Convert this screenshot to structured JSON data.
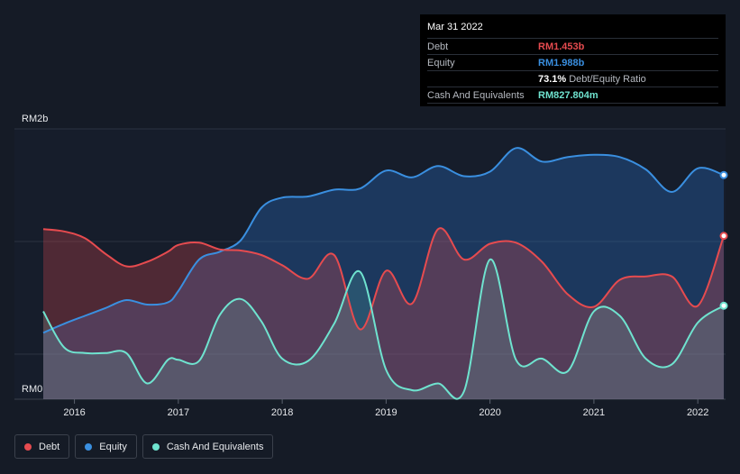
{
  "tooltip": {
    "date": "Mar 31 2022",
    "rows": [
      {
        "label": "Debt",
        "value": "RM1.453b",
        "color": "#e64b4f"
      },
      {
        "label": "Equity",
        "value": "RM1.988b",
        "color": "#3a8fe0"
      },
      {
        "label": "",
        "value": "73.1%",
        "note": "Debt/Equity Ratio",
        "color": "#ffffff"
      },
      {
        "label": "Cash And Equivalents",
        "value": "RM827.804m",
        "color": "#6fe3cf"
      }
    ]
  },
  "legend": [
    {
      "label": "Debt",
      "color": "#e64b4f"
    },
    {
      "label": "Equity",
      "color": "#3a8fe0"
    },
    {
      "label": "Cash And Equivalents",
      "color": "#6fe3cf"
    }
  ],
  "chart_data": {
    "type": "area",
    "y_unit": "RM billions",
    "y_tick_labels": [
      "RM2b",
      "RM0"
    ],
    "ylim": [
      0,
      2.4
    ],
    "xlim": [
      2015.7,
      2022.25
    ],
    "x_tick_labels": [
      "2016",
      "2017",
      "2018",
      "2019",
      "2020",
      "2021",
      "2022"
    ],
    "x_ticks": [
      2016,
      2017,
      2018,
      2019,
      2020,
      2021,
      2022
    ],
    "series": [
      {
        "name": "Debt",
        "color": "#e64b4f",
        "points": [
          [
            2015.7,
            1.51
          ],
          [
            2015.9,
            1.49
          ],
          [
            2016.1,
            1.43
          ],
          [
            2016.3,
            1.29
          ],
          [
            2016.5,
            1.18
          ],
          [
            2016.7,
            1.22
          ],
          [
            2016.9,
            1.31
          ],
          [
            2017.0,
            1.37
          ],
          [
            2017.2,
            1.39
          ],
          [
            2017.4,
            1.33
          ],
          [
            2017.6,
            1.32
          ],
          [
            2017.8,
            1.28
          ],
          [
            2018.0,
            1.19
          ],
          [
            2018.25,
            1.07
          ],
          [
            2018.5,
            1.28
          ],
          [
            2018.75,
            0.62
          ],
          [
            2019.0,
            1.14
          ],
          [
            2019.25,
            0.85
          ],
          [
            2019.5,
            1.51
          ],
          [
            2019.75,
            1.24
          ],
          [
            2020.0,
            1.38
          ],
          [
            2020.25,
            1.39
          ],
          [
            2020.5,
            1.22
          ],
          [
            2020.75,
            0.93
          ],
          [
            2021.0,
            0.82
          ],
          [
            2021.25,
            1.06
          ],
          [
            2021.5,
            1.09
          ],
          [
            2021.75,
            1.09
          ],
          [
            2022.0,
            0.83
          ],
          [
            2022.25,
            1.45
          ]
        ]
      },
      {
        "name": "Equity",
        "color": "#3a8fe0",
        "points": [
          [
            2015.7,
            0.59
          ],
          [
            2015.9,
            0.67
          ],
          [
            2016.1,
            0.74
          ],
          [
            2016.3,
            0.81
          ],
          [
            2016.5,
            0.88
          ],
          [
            2016.7,
            0.84
          ],
          [
            2016.9,
            0.86
          ],
          [
            2017.0,
            0.96
          ],
          [
            2017.2,
            1.24
          ],
          [
            2017.4,
            1.31
          ],
          [
            2017.6,
            1.41
          ],
          [
            2017.8,
            1.7
          ],
          [
            2018.0,
            1.79
          ],
          [
            2018.25,
            1.8
          ],
          [
            2018.5,
            1.86
          ],
          [
            2018.75,
            1.87
          ],
          [
            2019.0,
            2.03
          ],
          [
            2019.25,
            1.97
          ],
          [
            2019.5,
            2.07
          ],
          [
            2019.75,
            1.98
          ],
          [
            2020.0,
            2.02
          ],
          [
            2020.25,
            2.23
          ],
          [
            2020.5,
            2.11
          ],
          [
            2020.75,
            2.15
          ],
          [
            2021.0,
            2.17
          ],
          [
            2021.25,
            2.15
          ],
          [
            2021.5,
            2.04
          ],
          [
            2021.75,
            1.84
          ],
          [
            2022.0,
            2.05
          ],
          [
            2022.25,
            1.99
          ]
        ]
      },
      {
        "name": "Cash And Equivalents",
        "color": "#6fe3cf",
        "points": [
          [
            2015.7,
            0.78
          ],
          [
            2015.9,
            0.46
          ],
          [
            2016.1,
            0.41
          ],
          [
            2016.3,
            0.41
          ],
          [
            2016.5,
            0.41
          ],
          [
            2016.7,
            0.14
          ],
          [
            2016.9,
            0.35
          ],
          [
            2017.0,
            0.35
          ],
          [
            2017.2,
            0.34
          ],
          [
            2017.4,
            0.75
          ],
          [
            2017.6,
            0.89
          ],
          [
            2017.8,
            0.69
          ],
          [
            2018.0,
            0.36
          ],
          [
            2018.25,
            0.34
          ],
          [
            2018.5,
            0.67
          ],
          [
            2018.75,
            1.13
          ],
          [
            2019.0,
            0.26
          ],
          [
            2019.25,
            0.08
          ],
          [
            2019.5,
            0.14
          ],
          [
            2019.75,
            0.07
          ],
          [
            2020.0,
            1.24
          ],
          [
            2020.25,
            0.35
          ],
          [
            2020.5,
            0.36
          ],
          [
            2020.75,
            0.25
          ],
          [
            2021.0,
            0.78
          ],
          [
            2021.25,
            0.74
          ],
          [
            2021.5,
            0.36
          ],
          [
            2021.75,
            0.31
          ],
          [
            2022.0,
            0.68
          ],
          [
            2022.25,
            0.83
          ]
        ]
      }
    ]
  }
}
